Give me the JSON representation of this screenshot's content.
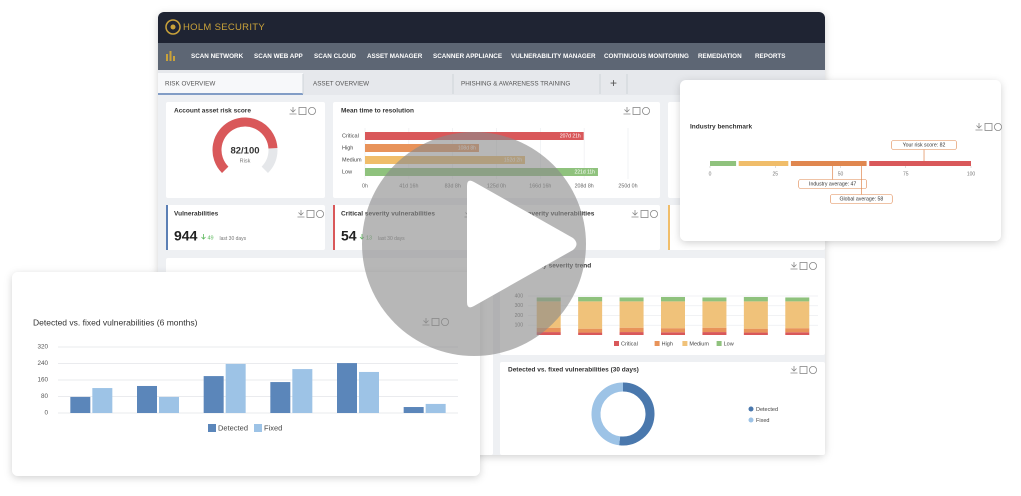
{
  "header": {
    "brand": "HOLM SECURITY"
  },
  "nav": [
    "SCAN NETWORK",
    "SCAN WEB APP",
    "SCAN CLOUD",
    "ASSET MANAGER",
    "SCANNER APPLIANCE",
    "VULNERABILITY MANAGER",
    "CONTINUOUS MONITORING",
    "REMEDIATION",
    "REPORTS"
  ],
  "tabs": [
    "RISK OVERVIEW",
    "ASSET OVERVIEW",
    "PHISHING & AWARENESS TRAINING",
    "+"
  ],
  "risk_score": {
    "title": "Account asset risk score",
    "value": 82,
    "label": "82/100",
    "max": 100,
    "caption": "Risk",
    "color": "#d9585a"
  },
  "mttr": {
    "type": "bar",
    "orientation": "horizontal",
    "title": "Mean time to resolution",
    "categories": [
      "Critical",
      "High",
      "Medium",
      "Low"
    ],
    "values": [
      4989,
      2600,
      3650,
      5315
    ],
    "value_labels": [
      "207d 21h",
      "108d 8h",
      "152d 2h",
      "221d 11h"
    ],
    "colors": [
      "#d9585a",
      "#e8935a",
      "#f0bd6a",
      "#8fc27d"
    ],
    "xlim": [
      0,
      6000
    ],
    "xticks": [
      {
        "value": 0,
        "label": "0h"
      },
      {
        "value": 1000,
        "label": "41d 16h"
      },
      {
        "value": 2000,
        "label": "83d 8h"
      },
      {
        "value": 3000,
        "label": "125d 0h"
      },
      {
        "value": 4000,
        "label": "166d 16h"
      },
      {
        "value": 5000,
        "label": "208d 8h"
      },
      {
        "value": 6000,
        "label": "250d 0h"
      }
    ],
    "grid": true
  },
  "kpis": [
    {
      "title": "Vulnerabilities",
      "value": 944,
      "change": 49,
      "note": "last 30 days",
      "color": "#5b7fb5"
    },
    {
      "title": "Critical severity vulnerabilities",
      "value": 54,
      "change": 13,
      "note": "last 30 days",
      "color": "#d9585a"
    },
    {
      "title": "High severity vulnerabilities",
      "color": "#e8935a"
    }
  ],
  "trend": {
    "type": "bar",
    "stacked": true,
    "title": "Vulnerability severity trend",
    "categories": [
      null,
      null,
      null,
      null,
      null,
      null,
      null
    ],
    "series": [
      {
        "name": "Critical",
        "color": "#d9585a",
        "values": [
          30,
          25,
          30,
          28,
          30,
          25,
          28
        ]
      },
      {
        "name": "High",
        "color": "#e8935a",
        "values": [
          45,
          40,
          45,
          42,
          45,
          40,
          42
        ]
      },
      {
        "name": "Medium",
        "color": "#f0c27a",
        "values": [
          270,
          280,
          270,
          275,
          270,
          280,
          275
        ]
      },
      {
        "name": "Low",
        "color": "#8fc27d",
        "values": [
          40,
          45,
          40,
          45,
          40,
          45,
          40
        ]
      }
    ],
    "ylim": [
      0,
      400
    ],
    "yticks": [
      100,
      200,
      300,
      400
    ],
    "grid": true,
    "legend": "bottom"
  },
  "donut": {
    "type": "pie",
    "title": "Detected vs. fixed vulnerabilities (30 days)",
    "categories": [
      "Detected",
      "Fixed"
    ],
    "values": [
      52,
      48
    ],
    "colors": [
      "#4a78ad",
      "#9dc3e6"
    ],
    "legend": "right"
  },
  "benchmark": {
    "title": "Industry benchmark",
    "xlim": [
      0,
      100
    ],
    "xticks": [
      0,
      25,
      50,
      75,
      100
    ],
    "bands": [
      {
        "from": 0,
        "to": 10,
        "color": "#8fc27d"
      },
      {
        "from": 11,
        "to": 30,
        "color": "#f0bd6a"
      },
      {
        "from": 31,
        "to": 60,
        "color": "#e0874f"
      },
      {
        "from": 61,
        "to": 100,
        "color": "#d9585a"
      }
    ],
    "markers": [
      {
        "value": 82,
        "label": "Your risk score: 82"
      },
      {
        "value": 47,
        "label": "Industry average: 47"
      },
      {
        "value": 58,
        "label": "Global average: 58"
      }
    ]
  },
  "monthly": {
    "type": "bar",
    "title": "Detected vs. fixed vulnerabilities (6 months)",
    "categories": [
      null,
      null,
      null,
      null,
      null,
      null
    ],
    "series": [
      {
        "name": "Detected",
        "color": "#5b86ba",
        "values": [
          78,
          131,
          179,
          150,
          242,
          29
        ]
      },
      {
        "name": "Fixed",
        "color": "#9dc3e6",
        "values": [
          121,
          78,
          238,
          213,
          199,
          44
        ]
      }
    ],
    "ylim": [
      0,
      320
    ],
    "yticks": [
      0,
      80,
      160,
      240,
      320
    ],
    "grid": true,
    "legend": "bottom"
  }
}
